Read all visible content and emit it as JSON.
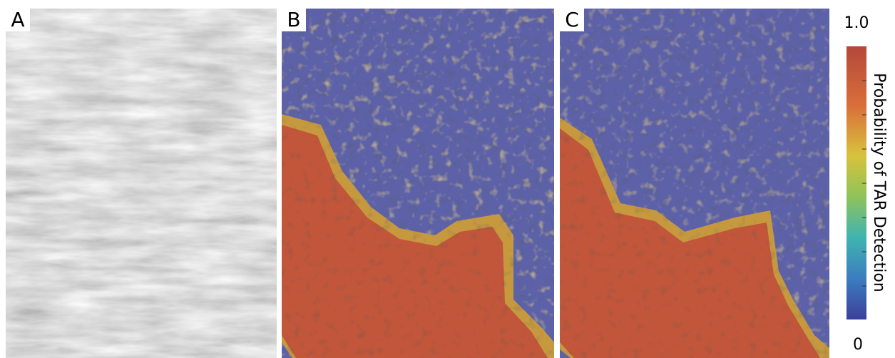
{
  "panels": [
    {
      "label": "A"
    },
    {
      "label": "B"
    },
    {
      "label": "C"
    }
  ],
  "colorbar": {
    "title": "Probability of TAR Detection",
    "max_label": "1.0",
    "min_label": "0"
  }
}
